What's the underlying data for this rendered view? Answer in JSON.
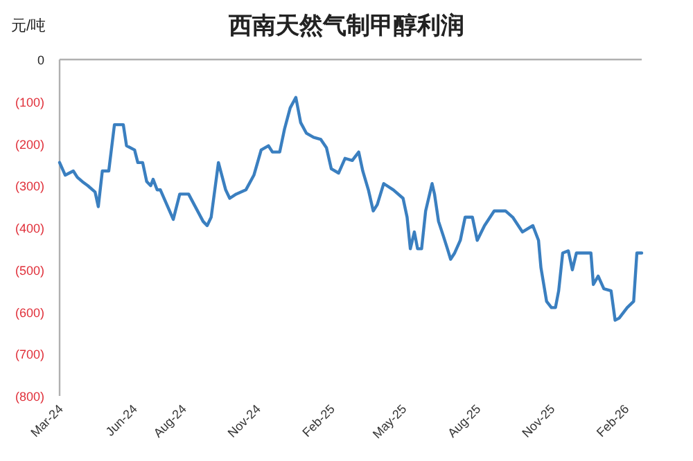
{
  "chart_data": {
    "type": "line",
    "title": "西南天然气制甲醇利润",
    "ylabel": "元/吨",
    "x": [
      "2024-03-01",
      "2024-03-08",
      "2024-03-18",
      "2024-03-23",
      "2024-03-29",
      "2024-04-05",
      "2024-04-14",
      "2024-04-18",
      "2024-04-23",
      "2024-05-01",
      "2024-05-08",
      "2024-05-19",
      "2024-05-23",
      "2024-06-02",
      "2024-06-06",
      "2024-06-12",
      "2024-06-17",
      "2024-06-22",
      "2024-06-25",
      "2024-06-30",
      "2024-07-04",
      "2024-07-20",
      "2024-07-28",
      "2024-08-08",
      "2024-08-26",
      "2024-08-31",
      "2024-09-05",
      "2024-09-14",
      "2024-09-23",
      "2024-09-28",
      "2024-10-06",
      "2024-10-18",
      "2024-10-28",
      "2024-11-06",
      "2024-11-15",
      "2024-11-20",
      "2024-11-29",
      "2024-12-05",
      "2024-12-12",
      "2024-12-19",
      "2024-12-25",
      "2025-01-01",
      "2025-01-10",
      "2025-01-19",
      "2025-01-26",
      "2025-02-01",
      "2025-02-10",
      "2025-02-18",
      "2025-02-27",
      "2025-03-07",
      "2025-03-12",
      "2025-03-19",
      "2025-03-25",
      "2025-03-30",
      "2025-04-07",
      "2025-04-19",
      "2025-05-01",
      "2025-05-06",
      "2025-05-10",
      "2025-05-15",
      "2025-05-19",
      "2025-05-24",
      "2025-05-29",
      "2025-06-06",
      "2025-06-09",
      "2025-06-14",
      "2025-06-20",
      "2025-06-25",
      "2025-06-29",
      "2025-07-04",
      "2025-07-11",
      "2025-07-17",
      "2025-07-26",
      "2025-08-01",
      "2025-08-10",
      "2025-08-22",
      "2025-09-05",
      "2025-09-14",
      "2025-09-26",
      "2025-10-09",
      "2025-10-16",
      "2025-10-19",
      "2025-10-26",
      "2025-11-01",
      "2025-11-06",
      "2025-11-10",
      "2025-11-15",
      "2025-11-22",
      "2025-11-27",
      "2025-12-02",
      "2025-12-11",
      "2025-12-20",
      "2025-12-23",
      "2025-12-29",
      "2026-01-05",
      "2026-01-14",
      "2026-01-19",
      "2026-01-24",
      "2026-02-03",
      "2026-02-11",
      "2026-02-15",
      "2026-02-21"
    ],
    "series": [
      {
        "color": "#3a7fc0",
        "values": [
          -245,
          -275,
          -265,
          -280,
          -290,
          -300,
          -315,
          -350,
          -265,
          -265,
          -155,
          -155,
          -205,
          -215,
          -245,
          -245,
          -290,
          -300,
          -285,
          -310,
          -310,
          -380,
          -320,
          -320,
          -385,
          -395,
          -375,
          -245,
          -310,
          -330,
          -320,
          -310,
          -275,
          -215,
          -205,
          -220,
          -220,
          -165,
          -115,
          -90,
          -150,
          -175,
          -185,
          -190,
          -210,
          -260,
          -270,
          -235,
          -240,
          -220,
          -265,
          -310,
          -360,
          -345,
          -295,
          -310,
          -330,
          -375,
          -450,
          -410,
          -450,
          -450,
          -360,
          -295,
          -320,
          -385,
          -420,
          -450,
          -475,
          -460,
          -430,
          -375,
          -375,
          -430,
          -395,
          -360,
          -360,
          -375,
          -410,
          -395,
          -430,
          -495,
          -575,
          -590,
          -590,
          -550,
          -460,
          -455,
          -500,
          -460,
          -460,
          -460,
          -535,
          -515,
          -545,
          -550,
          -620,
          -615,
          -590,
          -575,
          -460,
          -460
        ]
      }
    ],
    "xlim": [
      "2024-03-01",
      "2026-02-21"
    ],
    "xticks": [
      {
        "value": "2024-03-01",
        "label": "Mar-24"
      },
      {
        "value": "2024-06-01",
        "label": "Jun-24"
      },
      {
        "value": "2024-08-01",
        "label": "Aug-24"
      },
      {
        "value": "2024-11-01",
        "label": "Nov-24"
      },
      {
        "value": "2025-02-01",
        "label": "Feb-25"
      },
      {
        "value": "2025-05-01",
        "label": "May-25"
      },
      {
        "value": "2025-08-01",
        "label": "Aug-25"
      },
      {
        "value": "2025-11-01",
        "label": "Nov-25"
      },
      {
        "value": "2026-02-01",
        "label": "Feb-26"
      }
    ],
    "ylim": [
      -800,
      0
    ],
    "yticks": [
      0,
      {
        "value": -100,
        "label": "(100)"
      },
      {
        "value": -200,
        "label": "(200)"
      },
      {
        "value": -300,
        "label": "(300)"
      },
      {
        "value": -400,
        "label": "(400)"
      },
      {
        "value": -500,
        "label": "(500)"
      },
      {
        "value": -600,
        "label": "(600)"
      },
      {
        "value": -700,
        "label": "(700)"
      },
      {
        "value": -800,
        "label": "(800)"
      }
    ],
    "grid": false
  }
}
